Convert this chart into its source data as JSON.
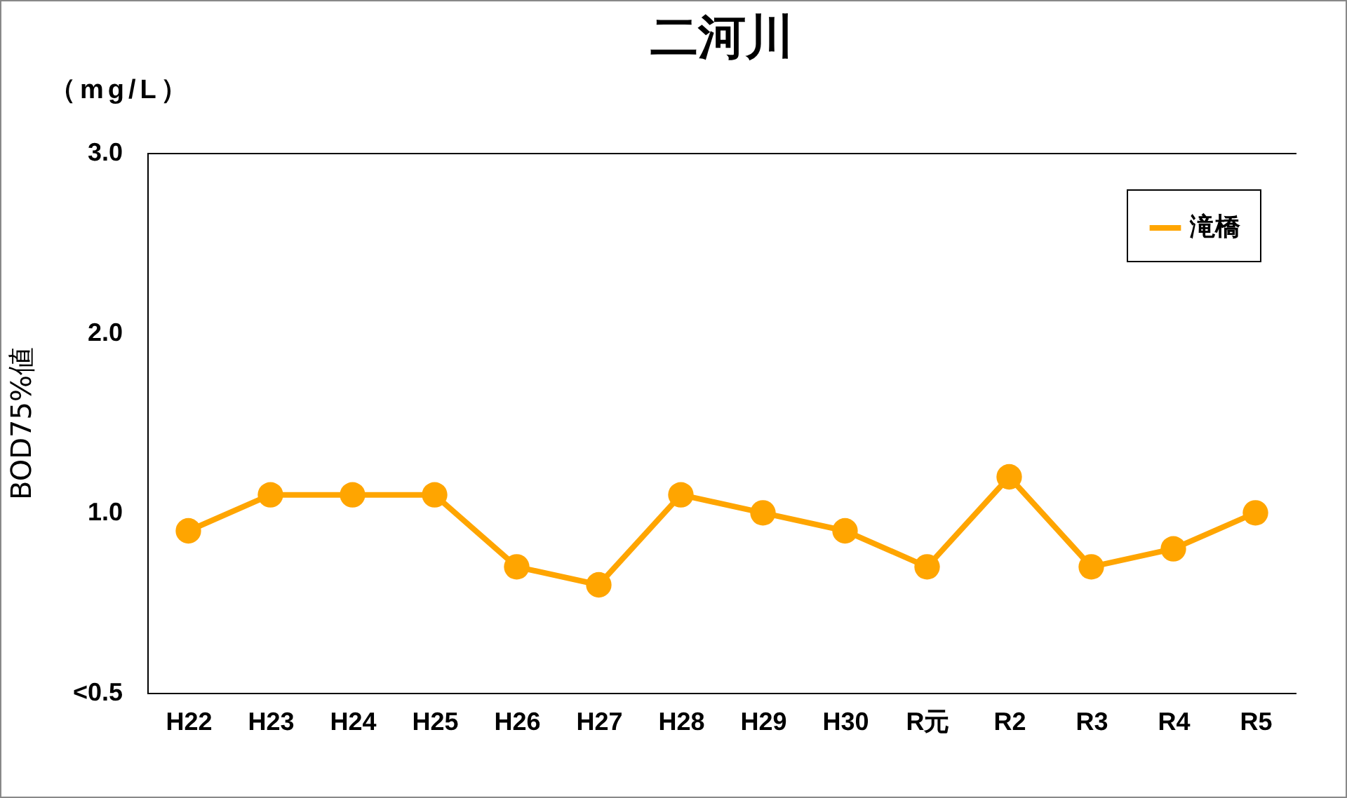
{
  "chart_data": {
    "type": "line",
    "title": "二河川",
    "ylabel": "BOD75%値",
    "annotations": [
      "（mg/L）"
    ],
    "categories": [
      "H22",
      "H23",
      "H24",
      "H25",
      "H26",
      "H27",
      "H28",
      "H29",
      "H30",
      "R元",
      "R2",
      "R3",
      "R4",
      "R5"
    ],
    "series": [
      {
        "name": "滝橋",
        "color": "#ffa500",
        "values": [
          0.9,
          1.1,
          1.1,
          1.1,
          0.7,
          0.6,
          1.1,
          1.0,
          0.9,
          0.7,
          1.2,
          0.7,
          0.8,
          1.0
        ]
      }
    ],
    "ylim": [
      0,
      3
    ],
    "yticks": [
      {
        "value": 0,
        "label": "<0.5"
      },
      {
        "value": 1,
        "label": "1.0"
      },
      {
        "value": 2,
        "label": "2.0"
      },
      {
        "value": 3,
        "label": "3.0"
      }
    ],
    "grid": false,
    "legend": "top right",
    "marker": "circle"
  }
}
